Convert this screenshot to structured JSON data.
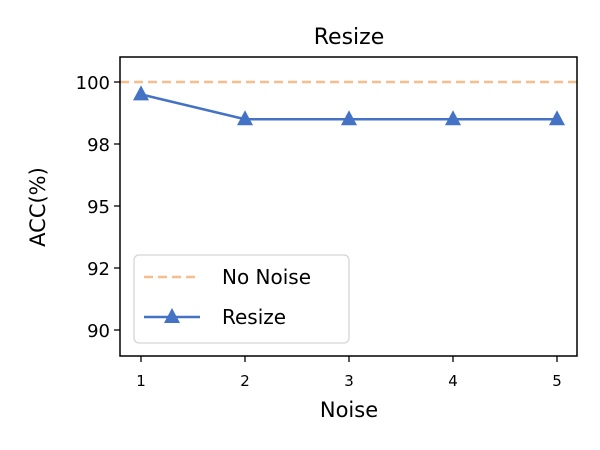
{
  "chart_data": {
    "type": "line",
    "title": "Resize",
    "xlabel": "Noise",
    "ylabel": "ACC(%)",
    "x": [
      1,
      2,
      3,
      4,
      5
    ],
    "xticks": [
      "1",
      "2",
      "3",
      "4",
      "5"
    ],
    "yticks": [
      {
        "value": 100,
        "label": "100"
      },
      {
        "value": 97.5,
        "label": "98"
      },
      {
        "value": 95,
        "label": "95"
      },
      {
        "value": 92.5,
        "label": "92"
      },
      {
        "value": 90,
        "label": "90"
      }
    ],
    "ylim": [
      89.0,
      100.9
    ],
    "xlim": [
      0.8,
      5.2
    ],
    "grid": false,
    "legend_position": "lower left",
    "series": [
      {
        "name": "No Noise",
        "style": "dashed",
        "marker": "none",
        "color": "#F5BE8C",
        "values": [
          100,
          100,
          100,
          100,
          100
        ]
      },
      {
        "name": "Resize",
        "style": "solid",
        "marker": "triangle",
        "color": "#4472C4",
        "values": [
          99.5,
          98.5,
          98.5,
          98.5,
          98.5
        ]
      }
    ]
  },
  "legend": {
    "items": [
      {
        "label": "No Noise"
      },
      {
        "label": "Resize"
      }
    ]
  }
}
